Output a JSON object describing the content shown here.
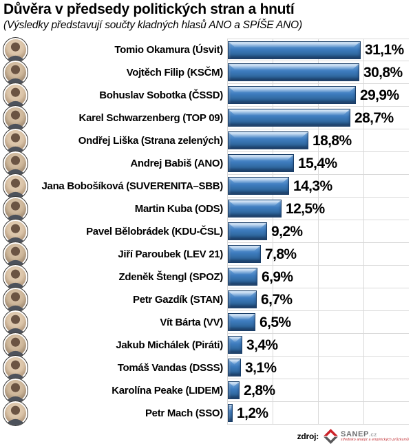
{
  "title": "Důvěra v předsedy politických stran a hnutí",
  "subtitle": "(Výsledky představují součty kladných hlasů ANO a SPÍŠE ANO)",
  "colors": {
    "bar_fill": "#3d7bbd",
    "bar_border": "#173c66",
    "gridline": "#d9d9d9",
    "text": "#000000",
    "logo_red": "#cc2229",
    "logo_gray": "#58585a"
  },
  "chart_data": {
    "type": "bar",
    "orientation": "horizontal",
    "title": "Důvěra v předsedy politických stran a hnutí",
    "subtitle": "(Výsledky představují součty kladných hlasů ANO a SPÍŠE ANO)",
    "unit": "%",
    "xlim": [
      0,
      42.5
    ],
    "grid": true,
    "legend": false,
    "row_icon": "leader-portrait-photo",
    "categories": [
      "Tomio Okamura (Úsvit)",
      "Vojtěch Filip (KSČM)",
      "Bohuslav Sobotka (ČSSD)",
      "Karel Schwarzenberg (TOP 09)",
      "Ondřej Liška (Strana zelených)",
      "Andrej Babiš (ANO)",
      "Jana Bobošíková (SUVERENITA–SBB)",
      "Martin Kuba (ODS)",
      "Pavel Bělobrádek (KDU-ČSL)",
      "Jiří Paroubek (LEV 21)",
      "Zdeněk Štengl (SPOZ)",
      "Petr Gazdík (STAN)",
      "Vít Bárta (VV)",
      "Jakub Michálek (Piráti)",
      "Tomáš Vandas (DSSS)",
      "Karolína Peake (LIDEM)",
      "Petr Mach (SSO)"
    ],
    "values": [
      31.1,
      30.8,
      29.9,
      28.7,
      18.8,
      15.4,
      14.3,
      12.5,
      9.2,
      7.8,
      6.9,
      6.7,
      6.5,
      3.4,
      3.1,
      2.8,
      1.2
    ],
    "value_labels": [
      "31,1%",
      "30,8%",
      "29,9%",
      "28,7%",
      "18,8%",
      "15,4%",
      "14,3%",
      "12,5%",
      "9,2%",
      "7,8%",
      "6,9%",
      "6,7%",
      "6,5%",
      "3,4%",
      "3,1%",
      "2,8%",
      "1,2%"
    ]
  },
  "source": {
    "label": "zdroj:",
    "logo_name": "SANEP",
    "logo_tld": ".cz",
    "tagline": "středisko analýz a empirických průzkumů"
  }
}
